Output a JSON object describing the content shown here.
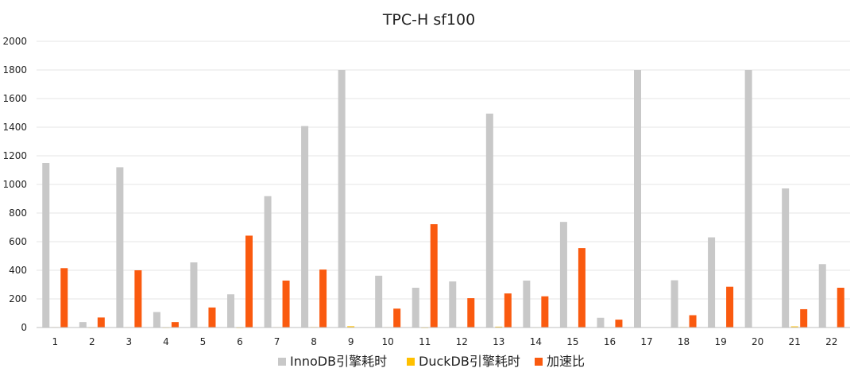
{
  "chart_data": {
    "type": "bar",
    "title": "TPC-H sf100",
    "xlabel": "",
    "ylabel": "",
    "ylim": [
      0,
      2000
    ],
    "yticks": [
      0,
      200,
      400,
      600,
      800,
      1000,
      1200,
      1400,
      1600,
      1800,
      2000
    ],
    "grid": true,
    "legend_position": "bottom",
    "categories": [
      "1",
      "2",
      "3",
      "4",
      "5",
      "6",
      "7",
      "8",
      "9",
      "10",
      "11",
      "12",
      "13",
      "14",
      "15",
      "16",
      "17",
      "18",
      "19",
      "20",
      "21",
      "22"
    ],
    "series": [
      {
        "name": "InnoDB引擎耗时",
        "color": "#c8c8c8",
        "values": [
          1150,
          38,
          1120,
          108,
          455,
          232,
          918,
          1408,
          1800,
          362,
          278,
          322,
          1495,
          328,
          738,
          68,
          1800,
          330,
          630,
          1800,
          972,
          443
        ]
      },
      {
        "name": "DuckDB引擎耗时",
        "color": "#ffc000",
        "values": [
          3,
          1,
          3,
          1,
          3,
          0.5,
          3,
          3.5,
          9,
          3,
          0.5,
          1.5,
          6,
          1.5,
          1.5,
          1.5,
          0,
          3.5,
          2,
          0,
          8,
          1.5
        ]
      },
      {
        "name": "加速比",
        "color": "#fa5a0f",
        "values": [
          415,
          70,
          400,
          38,
          140,
          642,
          328,
          405,
          0,
          132,
          722,
          205,
          238,
          218,
          555,
          55,
          0,
          86,
          285,
          0,
          128,
          278
        ]
      }
    ]
  }
}
